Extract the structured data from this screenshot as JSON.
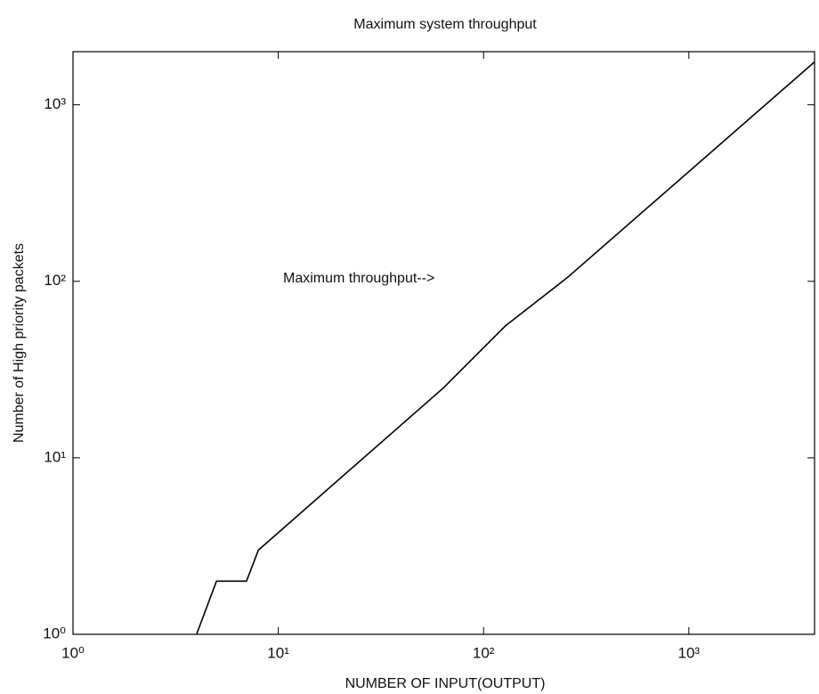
{
  "chart_data": {
    "type": "line",
    "title": "Maximum system throughput",
    "xlabel": "NUMBER OF INPUT(OUTPUT)",
    "ylabel": "Number of High priority packets",
    "annotation": "Maximum throughput-->",
    "x": [
      4,
      5,
      7,
      8,
      64,
      128,
      256,
      4096
    ],
    "values": [
      1,
      2,
      2,
      3,
      25,
      56,
      105,
      1750
    ],
    "color": "#000000",
    "xscale": "log",
    "yscale": "log",
    "xlim": [
      1,
      4096
    ],
    "ylim": [
      1,
      2000
    ],
    "xticks": [
      {
        "value": 1,
        "label": "10⁰"
      },
      {
        "value": 10,
        "label": "10¹"
      },
      {
        "value": 100,
        "label": "10²"
      },
      {
        "value": 1000,
        "label": "10³"
      }
    ],
    "yticks": [
      {
        "value": 1,
        "label": "10⁰"
      },
      {
        "value": 10,
        "label": "10¹"
      },
      {
        "value": 100,
        "label": "10²"
      },
      {
        "value": 1000,
        "label": "10³"
      }
    ],
    "grid": false
  }
}
